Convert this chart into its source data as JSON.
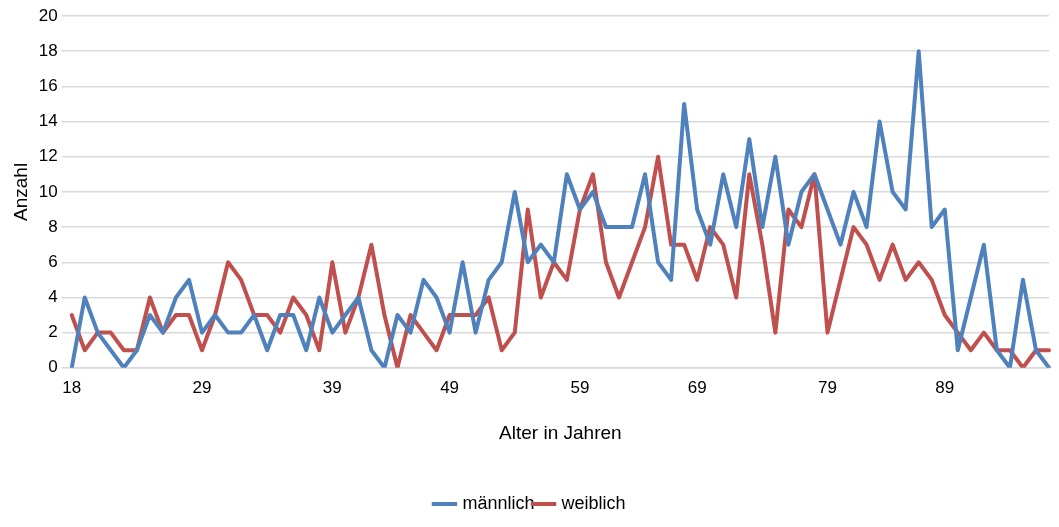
{
  "chart_data": {
    "type": "line",
    "xlabel": "Alter in Jahren",
    "ylabel": "Anzahl",
    "categories": [
      "18",
      null,
      null,
      null,
      null,
      null,
      null,
      null,
      null,
      null,
      "29",
      null,
      null,
      null,
      null,
      null,
      null,
      null,
      null,
      null,
      "39",
      null,
      null,
      null,
      null,
      null,
      null,
      null,
      null,
      "49",
      null,
      null,
      null,
      null,
      null,
      null,
      null,
      null,
      null,
      "59",
      null,
      null,
      null,
      null,
      null,
      null,
      null,
      null,
      "69",
      null,
      null,
      null,
      null,
      null,
      null,
      null,
      null,
      null,
      "79",
      null,
      null,
      null,
      null,
      null,
      null,
      null,
      null,
      "89",
      null,
      null,
      null,
      null,
      null,
      null,
      null,
      null
    ],
    "series": [
      {
        "name": "männlich",
        "color": "#4f81bd",
        "values": [
          0,
          4,
          2,
          1,
          0,
          1,
          3,
          2,
          4,
          5,
          2,
          3,
          2,
          2,
          3,
          1,
          3,
          3,
          1,
          4,
          2,
          3,
          4,
          1,
          0,
          3,
          2,
          5,
          4,
          2,
          6,
          2,
          5,
          6,
          10,
          6,
          7,
          6,
          11,
          9,
          10,
          8,
          8,
          8,
          11,
          6,
          5,
          15,
          9,
          7,
          11,
          8,
          13,
          8,
          12,
          7,
          10,
          11,
          9,
          7,
          10,
          8,
          14,
          10,
          9,
          18,
          8,
          9,
          1,
          4,
          7,
          1,
          0,
          5,
          1,
          0
        ]
      },
      {
        "name": "weiblich",
        "color": "#c0504d",
        "values": [
          3,
          1,
          2,
          2,
          1,
          1,
          4,
          2,
          3,
          3,
          1,
          3,
          6,
          5,
          3,
          3,
          2,
          4,
          3,
          1,
          6,
          2,
          4,
          7,
          3,
          0,
          3,
          2,
          1,
          3,
          3,
          3,
          4,
          1,
          2,
          9,
          4,
          6,
          5,
          9,
          11,
          6,
          4,
          6,
          8,
          12,
          7,
          7,
          5,
          8,
          7,
          4,
          11,
          7,
          2,
          9,
          8,
          11,
          2,
          5,
          8,
          7,
          5,
          7,
          5,
          6,
          5,
          3,
          2,
          1,
          2,
          1,
          1,
          0,
          1,
          1
        ]
      }
    ],
    "ylim": [
      0,
      20
    ],
    "yticks": [
      0,
      2,
      4,
      6,
      8,
      10,
      12,
      14,
      16,
      18,
      20
    ],
    "grid": "y",
    "legend": "bottom",
    "marker": "none",
    "line_style": "solid"
  }
}
